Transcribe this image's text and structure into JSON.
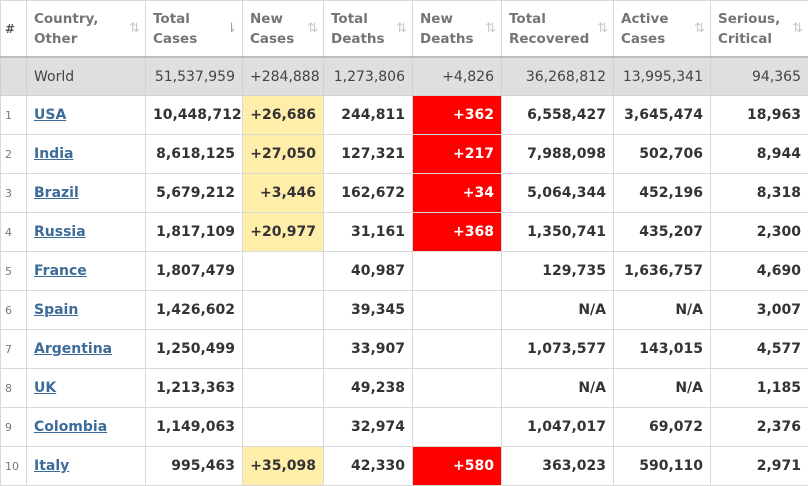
{
  "colors": {
    "new_cases_bg": "#ffeeaa",
    "new_deaths_bg": "#ff0000",
    "world_row_bg": "#dfdfdf",
    "link": "#3d6c9a"
  },
  "header": {
    "num": "#",
    "country": [
      "Country,",
      "Other"
    ],
    "total_cases": [
      "Total",
      "Cases"
    ],
    "new_cases": [
      "New",
      "Cases"
    ],
    "total_deaths": [
      "Total",
      "Deaths"
    ],
    "new_deaths": [
      "New",
      "Deaths"
    ],
    "total_recovered": [
      "Total",
      "Recovered"
    ],
    "active_cases": [
      "Active",
      "Cases"
    ],
    "serious_critical": [
      "Serious,",
      "Critical"
    ],
    "sort_icon": "⇅",
    "sort_active_icon": "⇂"
  },
  "world": {
    "name": "World",
    "total_cases": "51,537,959",
    "new_cases": "+284,888",
    "total_deaths": "1,273,806",
    "new_deaths": "+4,826",
    "total_recovered": "36,268,812",
    "active_cases": "13,995,341",
    "serious_critical": "94,365"
  },
  "rows": [
    {
      "num": "1",
      "country": "USA",
      "total_cases": "10,448,712",
      "new_cases": "+26,686",
      "total_deaths": "244,811",
      "new_deaths": "+362",
      "total_recovered": "6,558,427",
      "active_cases": "3,645,474",
      "serious_critical": "18,963"
    },
    {
      "num": "2",
      "country": "India",
      "total_cases": "8,618,125",
      "new_cases": "+27,050",
      "total_deaths": "127,321",
      "new_deaths": "+217",
      "total_recovered": "7,988,098",
      "active_cases": "502,706",
      "serious_critical": "8,944"
    },
    {
      "num": "3",
      "country": "Brazil",
      "total_cases": "5,679,212",
      "new_cases": "+3,446",
      "total_deaths": "162,672",
      "new_deaths": "+34",
      "total_recovered": "5,064,344",
      "active_cases": "452,196",
      "serious_critical": "8,318"
    },
    {
      "num": "4",
      "country": "Russia",
      "total_cases": "1,817,109",
      "new_cases": "+20,977",
      "total_deaths": "31,161",
      "new_deaths": "+368",
      "total_recovered": "1,350,741",
      "active_cases": "435,207",
      "serious_critical": "2,300"
    },
    {
      "num": "5",
      "country": "France",
      "total_cases": "1,807,479",
      "new_cases": "",
      "total_deaths": "40,987",
      "new_deaths": "",
      "total_recovered": "129,735",
      "active_cases": "1,636,757",
      "serious_critical": "4,690"
    },
    {
      "num": "6",
      "country": "Spain",
      "total_cases": "1,426,602",
      "new_cases": "",
      "total_deaths": "39,345",
      "new_deaths": "",
      "total_recovered": "N/A",
      "active_cases": "N/A",
      "serious_critical": "3,007"
    },
    {
      "num": "7",
      "country": "Argentina",
      "total_cases": "1,250,499",
      "new_cases": "",
      "total_deaths": "33,907",
      "new_deaths": "",
      "total_recovered": "1,073,577",
      "active_cases": "143,015",
      "serious_critical": "4,577"
    },
    {
      "num": "8",
      "country": "UK",
      "total_cases": "1,213,363",
      "new_cases": "",
      "total_deaths": "49,238",
      "new_deaths": "",
      "total_recovered": "N/A",
      "active_cases": "N/A",
      "serious_critical": "1,185"
    },
    {
      "num": "9",
      "country": "Colombia",
      "total_cases": "1,149,063",
      "new_cases": "",
      "total_deaths": "32,974",
      "new_deaths": "",
      "total_recovered": "1,047,017",
      "active_cases": "69,072",
      "serious_critical": "2,376"
    },
    {
      "num": "10",
      "country": "Italy",
      "total_cases": "995,463",
      "new_cases": "+35,098",
      "total_deaths": "42,330",
      "new_deaths": "+580",
      "total_recovered": "363,023",
      "active_cases": "590,110",
      "serious_critical": "2,971"
    }
  ]
}
